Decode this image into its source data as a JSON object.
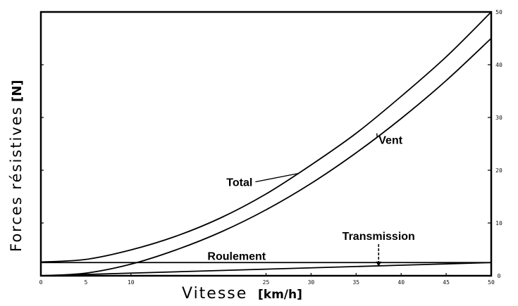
{
  "chart_data": {
    "type": "line",
    "title": "",
    "xlabel": "Vitesse",
    "xlabel_unit": "[km/h]",
    "ylabel": "Forces résistives",
    "ylabel_unit": "[N]",
    "xlim": [
      0,
      50
    ],
    "ylim": [
      0,
      50
    ],
    "x_ticks": [
      0,
      5,
      10,
      25,
      30,
      35,
      40,
      45,
      50
    ],
    "x_tick_labels": [
      "0",
      "5",
      "10",
      "25",
      "30",
      "35",
      "40",
      "45",
      "50"
    ],
    "y_ticks": [
      0,
      10,
      20,
      30,
      40,
      50
    ],
    "y_tick_labels": [
      "0",
      "10",
      "20",
      "30",
      "40",
      "50"
    ],
    "grid": false,
    "series": [
      {
        "name": "Total",
        "x": [
          0,
          5,
          10,
          15,
          20,
          25,
          30,
          35,
          40,
          45,
          50
        ],
        "values": [
          2.6,
          3.1,
          4.9,
          7.5,
          11.0,
          15.5,
          21.0,
          27.0,
          34.0,
          41.5,
          50.0
        ]
      },
      {
        "name": "Vent",
        "x": [
          0,
          5,
          10,
          15,
          20,
          25,
          30,
          35,
          40,
          45,
          50
        ],
        "values": [
          0,
          0.5,
          2.2,
          4.9,
          8.3,
          12.5,
          17.5,
          23.3,
          29.8,
          37.0,
          45.0
        ]
      },
      {
        "name": "Roulement",
        "x": [
          0,
          50
        ],
        "values": [
          2.5,
          2.5
        ]
      },
      {
        "name": "Transmission",
        "x": [
          0,
          10,
          20,
          30,
          40,
          50
        ],
        "values": [
          0,
          0.5,
          1.0,
          1.5,
          2.0,
          2.5
        ]
      }
    ],
    "annotations": [
      {
        "text": "Total",
        "x": 23.5,
        "y": 17
      },
      {
        "text": "Vent",
        "x": 37.5,
        "y": 25
      },
      {
        "text": "Roulement",
        "x": 18.5,
        "y": 3
      },
      {
        "text": "Transmission",
        "x": 37.5,
        "y": 6.8
      }
    ]
  }
}
